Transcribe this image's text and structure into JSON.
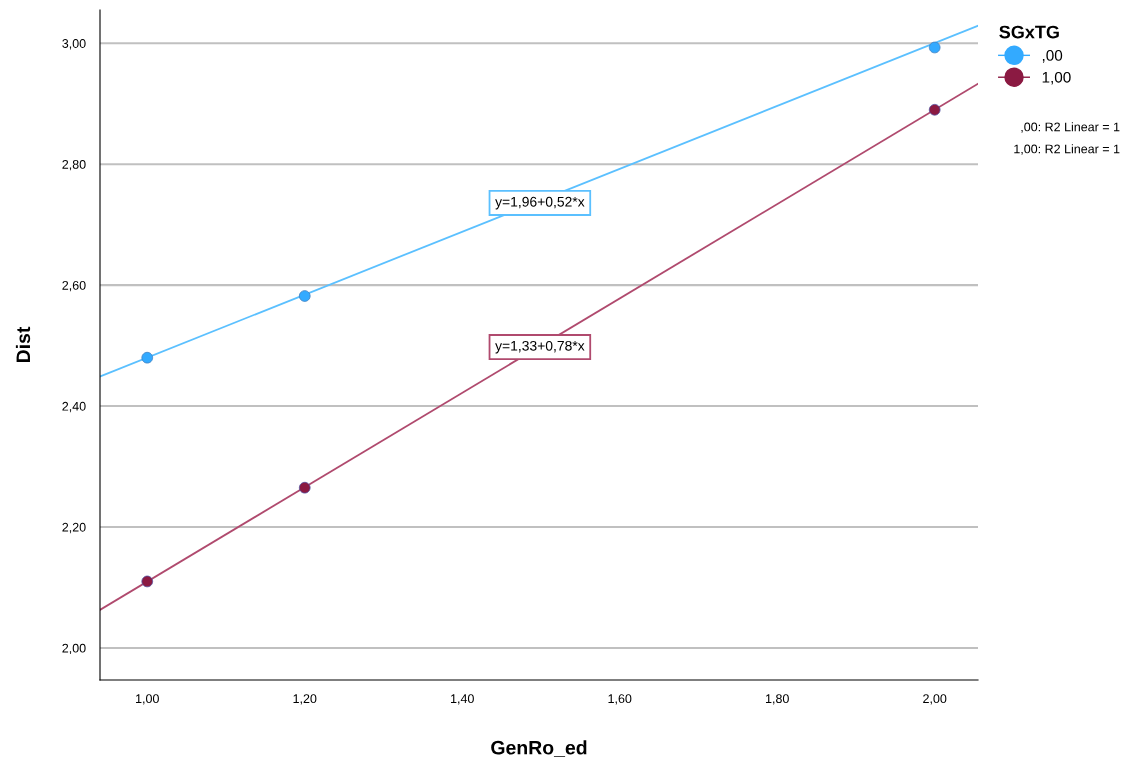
{
  "chart_data": {
    "type": "scatter",
    "xlabel": "GenRo_ed",
    "ylabel": "Dist",
    "legend_title": "SGxTG",
    "xlim": [
      0.94,
      2.055
    ],
    "ylim": [
      1.947,
      3.055
    ],
    "xticks": [
      {
        "value": 1.0,
        "label": "1,00"
      },
      {
        "value": 1.2,
        "label": "1,20"
      },
      {
        "value": 1.4,
        "label": "1,40"
      },
      {
        "value": 1.6,
        "label": "1,60"
      },
      {
        "value": 1.8,
        "label": "1,80"
      },
      {
        "value": 2.0,
        "label": "2,00"
      }
    ],
    "yticks": [
      {
        "value": 2.0,
        "label": "2,00"
      },
      {
        "value": 2.2,
        "label": "2,20"
      },
      {
        "value": 2.4,
        "label": "2,40"
      },
      {
        "value": 2.6,
        "label": "2,60"
      },
      {
        "value": 2.8,
        "label": "2,80"
      },
      {
        "value": 3.0,
        "label": "3,00"
      }
    ],
    "grid": "y",
    "legend": "top right",
    "marker": "circle",
    "series": [
      {
        "name": ",00",
        "color": "#33aaff",
        "x": [
          1.0,
          1.2,
          2.0
        ],
        "values": [
          2.48,
          2.582,
          2.993
        ]
      },
      {
        "name": "1,00",
        "color": "#8b1a42",
        "x": [
          1.0,
          1.2,
          2.0
        ],
        "values": [
          2.11,
          2.265,
          2.89
        ]
      },
      {
        "type": "line",
        "marker": "none",
        "color": "#5bc0ff",
        "x": [
          0.94,
          2.055
        ],
        "values": [
          2.449,
          3.029
        ]
      },
      {
        "type": "line",
        "marker": "none",
        "color": "#b04a6e",
        "x": [
          0.94,
          2.055
        ],
        "values": [
          2.063,
          2.933
        ]
      }
    ],
    "annotations": [
      "y=1,96+0,52*x",
      "y=1,33+0,78*x",
      ",00: R2 Linear = 1",
      "1,00: R2 Linear = 1"
    ]
  }
}
